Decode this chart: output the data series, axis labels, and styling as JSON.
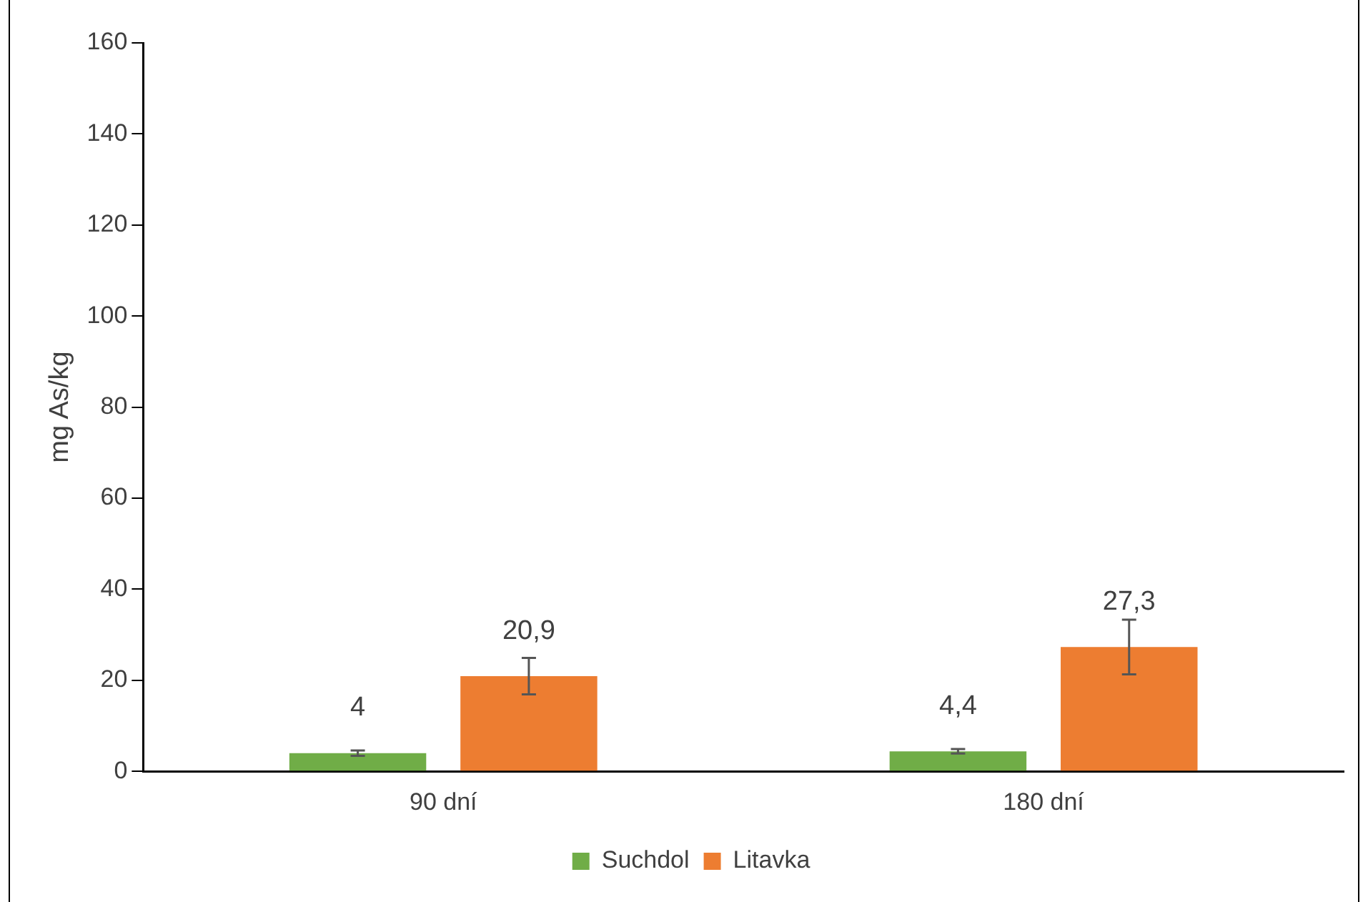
{
  "chart_data": {
    "type": "bar",
    "ylabel": "mg As/kg",
    "categories": [
      "90 dní",
      "180 dní"
    ],
    "series": [
      {
        "name": "Suchdol",
        "color": "#70ad47",
        "values": [
          4,
          4.4
        ],
        "errors": [
          0.6,
          0.5
        ],
        "value_labels": [
          "4",
          "4,4"
        ]
      },
      {
        "name": "Litavka",
        "color": "#ed7d31",
        "values": [
          20.9,
          27.3
        ],
        "errors": [
          4,
          6
        ],
        "value_labels": [
          "20,9",
          "27,3"
        ]
      }
    ],
    "ylim": [
      0,
      160
    ],
    "yticks": [
      0,
      20,
      40,
      60,
      80,
      100,
      120,
      140,
      160
    ],
    "grid": false,
    "legend": "bottom"
  }
}
